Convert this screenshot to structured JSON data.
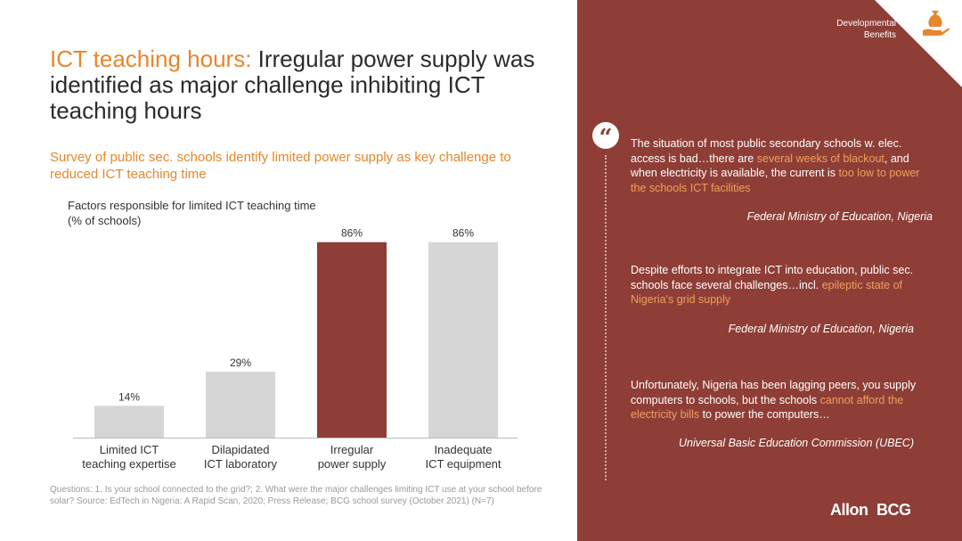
{
  "title": {
    "accent": "ICT teaching hours:",
    "rest": " Irregular power supply was identified as major challenge inhibiting ICT teaching hours"
  },
  "subtitle": "Survey of public sec. schools identify limited power supply as key challenge to reduced ICT teaching time",
  "chart_label": {
    "line1": "Factors responsible for limited ICT teaching time",
    "line2": "(% of schools)"
  },
  "chart_data": {
    "type": "bar",
    "categories": [
      [
        "Limited ICT",
        "teaching expertise"
      ],
      [
        "Dilapidated",
        "ICT laboratory"
      ],
      [
        "Irregular",
        "power supply"
      ],
      [
        "Inadequate",
        "ICT equipment"
      ]
    ],
    "values": [
      14,
      29,
      86,
      86
    ],
    "value_labels": [
      "14%",
      "29%",
      "86%",
      "86%"
    ],
    "highlight_index": 2,
    "colors": {
      "default": "#d6d6d6",
      "highlight": "#8e3e36",
      "axis": "#bbbbbb",
      "label": "#333333"
    },
    "title": "Factors responsible for limited ICT teaching time",
    "ylabel": "(% of schools)",
    "ylim": [
      0,
      100
    ]
  },
  "footnote": "Questions: 1. Is your school connected to the grid?; 2. What were the major challenges limiting ICT use at your school before solar? Source: EdTech in Nigeria: A Rapid Scan, 2020; Press Release; BCG school survey (October 2021) (N=7)",
  "panel": {
    "bg_color": "#8e3e36",
    "tag_line1": "Developmental",
    "tag_line2": "Benefits",
    "tag_icon": "hand-money-bag-icon",
    "quote_icon": "“",
    "quotes": [
      {
        "parts": [
          "The situation of most public secondary schools w. elec. access is bad…there are ",
          "several weeks of blackout",
          ", and when electricity is available, the current is ",
          "too low to power the schools ICT facilities",
          ""
        ],
        "source": "Federal Ministry of Education, Nigeria"
      },
      {
        "parts": [
          "Despite efforts to integrate ICT into education, public sec. schools face several challenges…incl. ",
          "epileptic state of Nigeria's grid supply",
          "",
          "",
          ""
        ],
        "source": "Federal Ministry of Education, Nigeria"
      },
      {
        "parts": [
          "Unfortunately, Nigeria has been lagging peers, you supply computers to schools, but the schools ",
          "cannot afford the electricity bills",
          " to power the computers…",
          "",
          ""
        ],
        "source": "Universal Basic Education Commission (UBEC)"
      }
    ],
    "logos": {
      "allon": "Allon",
      "bcg": "BCG"
    }
  }
}
